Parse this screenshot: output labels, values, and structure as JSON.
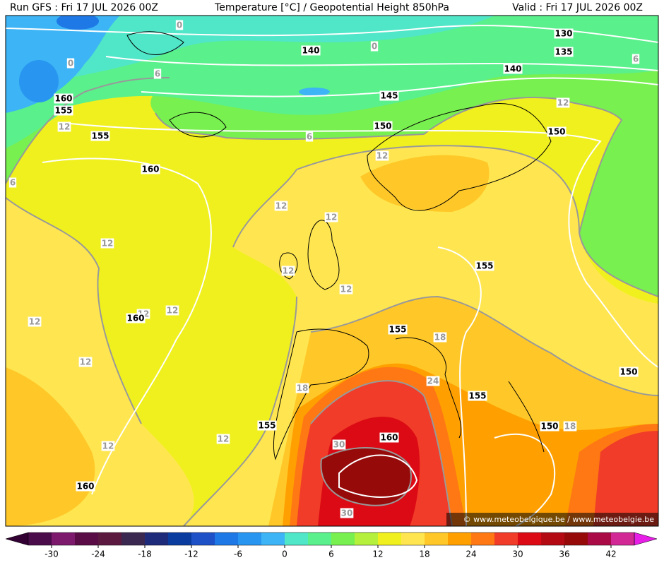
{
  "header": {
    "left": "Run GFS : Fri 17 JUL 2026 00Z",
    "center": "Temperature [°C] / Geopotential Height 850hPa",
    "right": "Valid : Fri 17 JUL 2026 00Z"
  },
  "map": {
    "height_labels": [
      130,
      135,
      140,
      140,
      145,
      150,
      150,
      160,
      155,
      155,
      160,
      155,
      160,
      155,
      150,
      155,
      155,
      150,
      160,
      160
    ],
    "temperature_labels": [
      0,
      0,
      0,
      6,
      6,
      6,
      6,
      12,
      12,
      12,
      12,
      12,
      12,
      12,
      12,
      12,
      12,
      12,
      12,
      12,
      12,
      18,
      18,
      18,
      24,
      30,
      30
    ],
    "watermark": "© www.meteobelgique.be / www.meteobelgie.be"
  },
  "colorbar": {
    "under": "#320032",
    "over": "#e61ee6",
    "colors": [
      "#4b0c4b",
      "#7d1a6e",
      "#5a0c46",
      "#5c1940",
      "#3a2850",
      "#1e2a7a",
      "#0a3ca0",
      "#1e50c8",
      "#1e78e6",
      "#2896f0",
      "#3cb4f5",
      "#50e6c8",
      "#5af08c",
      "#78f050",
      "#b4f03c",
      "#f0f01e",
      "#ffe650",
      "#ffc828",
      "#ffa000",
      "#ff7814",
      "#f03c28",
      "#dc0a14",
      "#b40a14",
      "#960a0a",
      "#aa0a46",
      "#d22896"
    ],
    "ticks": [
      -30,
      -24,
      -18,
      -12,
      -6,
      0,
      6,
      12,
      18,
      24,
      30,
      36,
      42
    ]
  }
}
